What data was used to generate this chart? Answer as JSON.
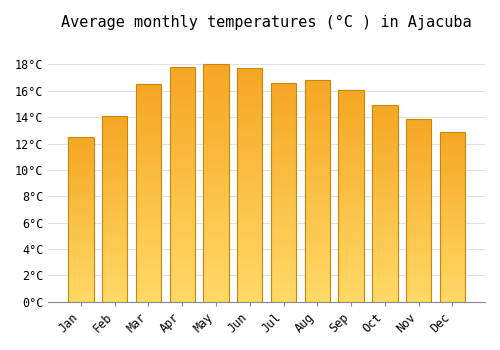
{
  "title": "Average monthly temperatures (°C ) in Ajacuba",
  "months": [
    "Jan",
    "Feb",
    "Mar",
    "Apr",
    "May",
    "Jun",
    "Jul",
    "Aug",
    "Sep",
    "Oct",
    "Nov",
    "Dec"
  ],
  "values": [
    12.5,
    14.1,
    16.5,
    17.8,
    18.0,
    17.7,
    16.6,
    16.8,
    16.1,
    14.9,
    13.9,
    12.9
  ],
  "bar_color_top": "#F5A623",
  "bar_color_bottom": "#FFD966",
  "bar_edge_color": "#C8860A",
  "ylim": [
    0,
    20
  ],
  "yticks": [
    0,
    2,
    4,
    6,
    8,
    10,
    12,
    14,
    16,
    18
  ],
  "ytick_labels": [
    "0°C",
    "2°C",
    "4°C",
    "6°C",
    "8°C",
    "10°C",
    "12°C",
    "14°C",
    "16°C",
    "18°C"
  ],
  "background_color": "#FFFFFF",
  "grid_color": "#E0E0E0",
  "title_fontsize": 11,
  "tick_fontsize": 8.5,
  "bar_width": 0.75
}
